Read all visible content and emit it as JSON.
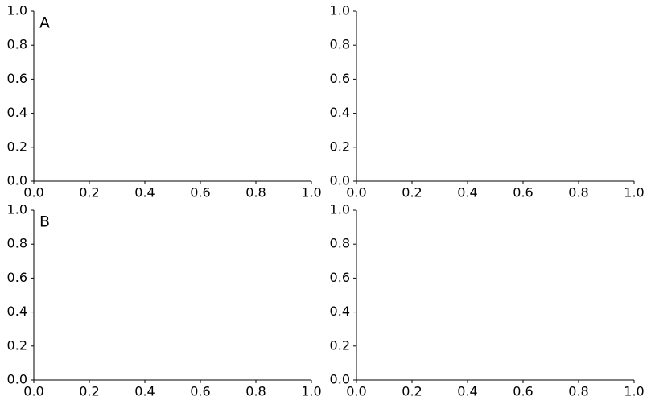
{
  "chart_data": [
    {
      "type": "line",
      "annotation": "A",
      "xlim": [
        0,
        1
      ],
      "ylim": [
        0,
        1
      ],
      "xticks": [
        {
          "value": 0,
          "label": "0.0"
        },
        0.2,
        0.4,
        0.6,
        0.8,
        {
          "value": 1,
          "label": "1.0"
        }
      ],
      "yticks": [
        {
          "value": 0,
          "label": "0.0"
        },
        0.2,
        0.4,
        0.6,
        0.8,
        {
          "value": 1,
          "label": "1.0"
        }
      ]
    },
    {
      "type": "line",
      "xlim": [
        0,
        1
      ],
      "ylim": [
        0,
        1
      ],
      "xticks": [
        {
          "value": 0,
          "label": "0.0"
        },
        0.2,
        0.4,
        0.6,
        0.8,
        {
          "value": 1,
          "label": "1.0"
        }
      ],
      "yticks": [
        {
          "value": 0,
          "label": "0.0"
        },
        0.2,
        0.4,
        0.6,
        0.8,
        {
          "value": 1,
          "label": "1.0"
        }
      ]
    },
    {
      "type": "line",
      "annotation": "B",
      "xlim": [
        0,
        1
      ],
      "ylim": [
        0,
        1
      ],
      "xticks": [
        {
          "value": 0,
          "label": "0.0"
        },
        0.2,
        0.4,
        0.6,
        0.8,
        {
          "value": 1,
          "label": "1.0"
        }
      ],
      "yticks": [
        {
          "value": 0,
          "label": "0.0"
        },
        0.2,
        0.4,
        0.6,
        0.8,
        {
          "value": 1,
          "label": "1.0"
        }
      ]
    },
    {
      "type": "line",
      "xlim": [
        0,
        1
      ],
      "ylim": [
        0,
        1
      ],
      "xticks": [
        {
          "value": 0,
          "label": "0.0"
        },
        0.2,
        0.4,
        0.6,
        0.8,
        {
          "value": 1,
          "label": "1.0"
        }
      ],
      "yticks": [
        {
          "value": 0,
          "label": "0.0"
        },
        0.2,
        0.4,
        0.6,
        0.8,
        {
          "value": 1,
          "label": "1.0"
        }
      ]
    }
  ]
}
